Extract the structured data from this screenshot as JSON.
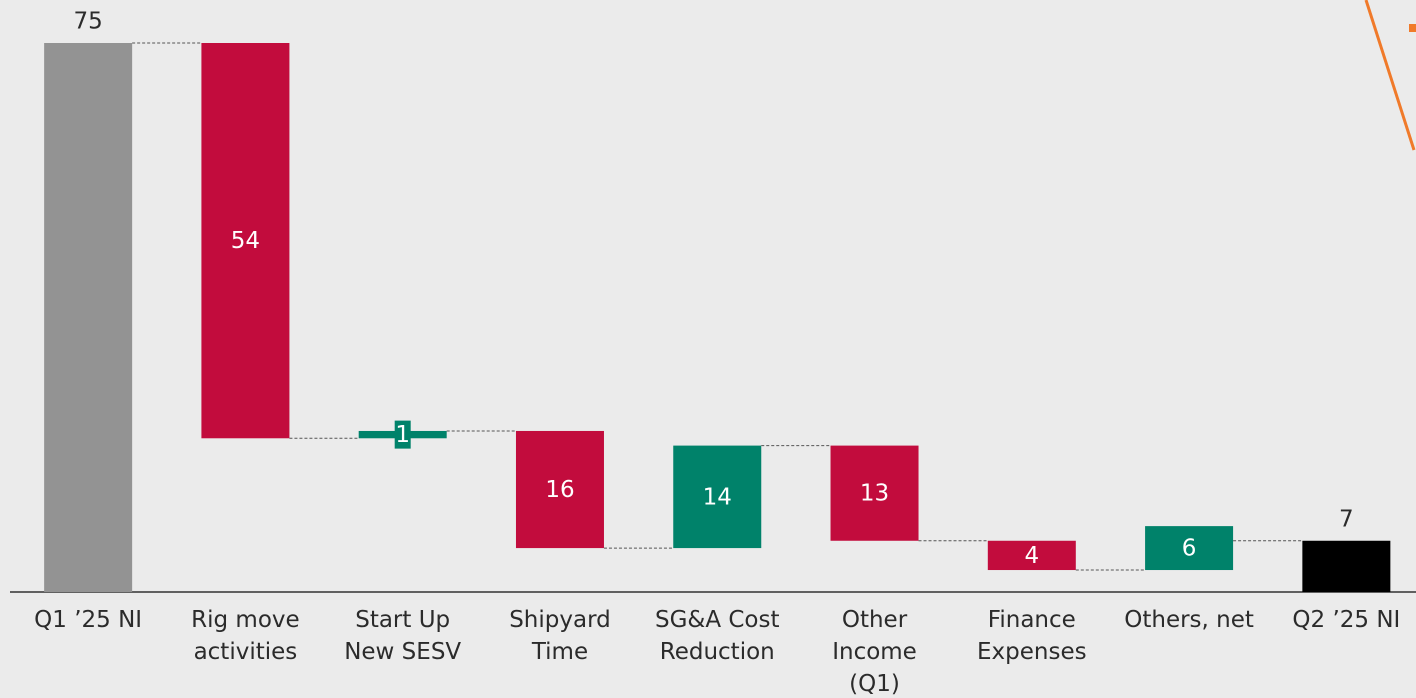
{
  "chart_data": {
    "type": "waterfall",
    "categories": [
      "Q1 ’25 NI",
      "Rig move\nactivities",
      "Start Up\nNew SESV",
      "Shipyard\nTime",
      "SG&A Cost\nReduction",
      "Other\nIncome\n(Q1)",
      "Finance\nExpenses",
      "Others, net",
      "Q2 ’25 NI"
    ],
    "values": [
      75,
      -54,
      1,
      -16,
      14,
      -13,
      -4,
      6,
      7
    ],
    "value_labels": [
      "75",
      "54",
      "1",
      "16",
      "14",
      "13",
      "4",
      "6",
      "7"
    ],
    "totals": [
      true,
      false,
      false,
      false,
      false,
      false,
      false,
      false,
      true
    ],
    "colors": [
      "#939393",
      "#c20c3d",
      "#00826a",
      "#c20c3d",
      "#00826a",
      "#c20c3d",
      "#c20c3d",
      "#00826a",
      "#000000"
    ],
    "ylim": [
      0,
      75
    ]
  }
}
